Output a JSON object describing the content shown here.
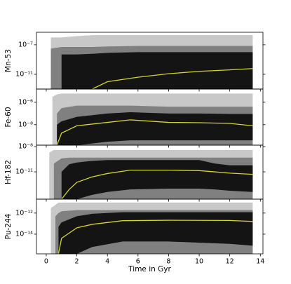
{
  "chart_data": [
    {
      "type": "band",
      "ylabel": "Mn-53",
      "log_y": true,
      "xlim": [
        -0.64,
        14.17
      ],
      "ylim": [
        1e-13,
        5e-06
      ],
      "yticks": [
        {
          "value": 1e-07,
          "label": "10⁻⁷"
        },
        {
          "value": 1e-11,
          "label": "10⁻¹¹"
        }
      ],
      "x": [
        0.3,
        1,
        2,
        3,
        4,
        6,
        8,
        10,
        12,
        13.5
      ],
      "series": [
        {
          "color": "#c8c8c8",
          "upper": [
            1e-06,
            1e-06,
            1.5e-06,
            2e-06,
            2e-06,
            2e-06,
            2e-06,
            2e-06,
            2e-06,
            2e-06
          ],
          "lower": [
            1e-13,
            1e-13,
            1e-13,
            1e-13,
            1e-13,
            1e-13,
            1e-13,
            1e-13,
            1e-13,
            1e-13
          ]
        },
        {
          "color": "#808080",
          "upper": [
            3e-08,
            5e-08,
            5e-08,
            5e-08,
            6e-08,
            7e-08,
            7e-08,
            7e-08,
            7e-08,
            7e-08
          ],
          "lower": [
            1e-13,
            1e-13,
            1e-13,
            1e-13,
            1e-13,
            1e-13,
            1e-13,
            1e-13,
            1e-13,
            1e-13
          ]
        },
        {
          "color": "#141414",
          "upper": [
            null,
            5e-09,
            5e-09,
            6e-09,
            8e-09,
            1e-08,
            1e-08,
            1e-08,
            1e-08,
            1e-08
          ],
          "lower": [
            null,
            1e-13,
            1e-13,
            1e-13,
            1e-13,
            1e-13,
            1e-13,
            1e-13,
            1e-13,
            1e-13
          ]
        },
        {
          "color": "#d4d42a",
          "values": [
            null,
            null,
            null,
            1e-13,
            1e-12,
            4e-12,
            1.2e-11,
            2.5e-11,
            4e-11,
            6e-11
          ]
        }
      ]
    },
    {
      "type": "band",
      "ylabel": "Fe-60",
      "log_y": true,
      "xlim": [
        -0.64,
        14.17
      ],
      "ylim": [
        1.5e-10,
        1.5e-05
      ],
      "yticks": [
        {
          "value": 1e-06,
          "label": "10⁻⁶"
        },
        {
          "value": 1e-08,
          "label": "10⁻⁸"
        }
      ],
      "x": [
        0.4,
        0.7,
        1,
        2,
        4,
        5.5,
        8,
        10,
        12,
        13.5
      ],
      "series": [
        {
          "color": "#c8c8c8",
          "upper": [
            3e-06,
            5e-06,
            6e-06,
            6e-06,
            6e-06,
            6e-06,
            6e-06,
            6e-06,
            6e-06,
            6e-06
          ],
          "lower": [
            1.5e-10,
            1.5e-10,
            1.5e-10,
            1.5e-10,
            1.5e-10,
            1.5e-10,
            1.5e-10,
            1.5e-10,
            1.5e-10,
            1.5e-10
          ]
        },
        {
          "color": "#808080",
          "upper": [
            null,
            1e-07,
            3e-07,
            5e-07,
            5e-07,
            5e-07,
            4e-07,
            4e-07,
            4e-07,
            4e-07
          ],
          "lower": [
            null,
            1.5e-10,
            1.5e-10,
            1.5e-10,
            1.5e-10,
            1.5e-10,
            1.5e-10,
            1.5e-10,
            1.5e-10,
            1.5e-10
          ]
        },
        {
          "color": "#141414",
          "upper": [
            null,
            1e-08,
            2e-08,
            5e-08,
            1e-07,
            1.3e-07,
            1e-07,
            1e-07,
            9e-08,
            9e-08
          ],
          "lower": [
            null,
            1.5e-10,
            1.5e-10,
            1.5e-10,
            3e-10,
            4e-10,
            4e-10,
            4e-10,
            4e-10,
            4e-10
          ]
        },
        {
          "color": "#d4d42a",
          "values": [
            null,
            1.5e-10,
            1.8e-09,
            8e-09,
            1.6e-08,
            2.7e-08,
            1.6e-08,
            1.5e-08,
            1.3e-08,
            8e-09
          ]
        }
      ]
    },
    {
      "type": "band",
      "ylabel": "Hf-182",
      "log_y": true,
      "xlim": [
        -0.64,
        14.17
      ],
      "ylim": [
        5.6e-15,
        1.5e-08
      ],
      "yticks": [
        {
          "value": 1e-08,
          "label": "10⁻⁸"
        },
        {
          "value": 1e-11,
          "label": "10⁻¹¹"
        }
      ],
      "x": [
        0.2,
        0.5,
        1,
        1.5,
        2,
        3,
        4,
        5.5,
        8,
        10,
        11,
        12,
        13.5
      ],
      "series": [
        {
          "color": "#c8c8c8",
          "upper": [
            2e-09,
            4e-09,
            4e-09,
            4e-09,
            4e-09,
            4e-09,
            4e-09,
            4e-09,
            4e-09,
            4e-09,
            4e-09,
            4e-09,
            4e-09
          ],
          "lower": [
            5.6e-15,
            5.6e-15,
            5.6e-15,
            5.6e-15,
            5.6e-15,
            5.6e-15,
            5.6e-15,
            5.6e-15,
            5.6e-15,
            5.6e-15,
            5.6e-15,
            5.6e-15,
            5.6e-15
          ]
        },
        {
          "color": "#808080",
          "upper": [
            null,
            1e-10,
            4e-10,
            5e-10,
            5e-10,
            5e-10,
            5e-10,
            5e-10,
            5e-10,
            5e-10,
            5e-10,
            5e-10,
            5e-10
          ],
          "lower": [
            null,
            5.6e-15,
            5.6e-15,
            5.6e-15,
            5.6e-15,
            5.6e-15,
            5.6e-15,
            5.6e-15,
            5.6e-15,
            5.6e-15,
            5.6e-15,
            5.6e-15,
            5.6e-15
          ]
        },
        {
          "color": "#141414",
          "upper": [
            null,
            null,
            1e-11,
            8e-11,
            1.3e-10,
            2e-10,
            2.5e-10,
            2.5e-10,
            2.5e-10,
            2.5e-10,
            1e-10,
            6e-11,
            6e-11
          ],
          "lower": [
            null,
            null,
            5.6e-15,
            5.6e-15,
            5.6e-15,
            1.8e-14,
            4e-14,
            8e-14,
            1e-13,
            1e-13,
            8e-14,
            5.6e-14,
            4e-14
          ]
        },
        {
          "color": "#d4d42a",
          "values": [
            null,
            null,
            5.6e-15,
            8e-14,
            5.6e-13,
            2.5e-12,
            6.3e-12,
            1.6e-11,
            1.6e-11,
            1.4e-11,
            1e-11,
            7e-12,
            5e-12
          ]
        }
      ]
    },
    {
      "type": "band",
      "ylabel": "Pu-244",
      "log_y": true,
      "xlim": [
        -0.64,
        14.17
      ],
      "ylim": [
        1.35e-16,
        2.1e-11
      ],
      "yticks": [
        {
          "value": 1e-12,
          "label": "10⁻¹²"
        },
        {
          "value": 1e-14,
          "label": "10⁻¹⁴"
        }
      ],
      "xlabel": "Time in Gyr",
      "xticks": [
        0,
        2,
        4,
        6,
        8,
        10,
        12,
        14
      ],
      "x": [
        0.3,
        0.6,
        0.8,
        1,
        2,
        3,
        5,
        8,
        12,
        13.5
      ],
      "series": [
        {
          "color": "#c8c8c8",
          "upper": [
            3e-12,
            6e-12,
            1e-11,
            1e-11,
            1e-11,
            1e-11,
            1e-11,
            1e-11,
            1e-11,
            1e-11
          ],
          "lower": [
            1.35e-16,
            1.35e-16,
            1.35e-16,
            1.35e-16,
            1.35e-16,
            1.35e-16,
            1.35e-16,
            1.35e-16,
            1.35e-16,
            1.35e-16
          ]
        },
        {
          "color": "#808080",
          "upper": [
            null,
            5e-13,
            1e-12,
            1.5e-12,
            1.9e-12,
            1.9e-12,
            1.9e-12,
            1.9e-12,
            1.9e-12,
            1.9e-12
          ],
          "lower": [
            null,
            1.35e-16,
            1.35e-16,
            1.35e-16,
            1.35e-16,
            1.35e-16,
            1.35e-16,
            1.35e-16,
            1.35e-16,
            1.35e-16
          ]
        },
        {
          "color": "#141414",
          "upper": [
            null,
            null,
            5e-14,
            1.3e-13,
            5e-13,
            8.5e-13,
            1.2e-12,
            1.2e-12,
            1.2e-12,
            1.2e-12
          ],
          "lower": [
            null,
            null,
            1.35e-16,
            1.35e-16,
            1.35e-16,
            6e-16,
            2e-15,
            2e-15,
            1.2e-15,
            8e-16
          ]
        },
        {
          "color": "#d4d42a",
          "values": [
            null,
            null,
            1.35e-16,
            4e-15,
            4e-14,
            8.5e-14,
            1.9e-13,
            2.1e-13,
            2e-13,
            1.6e-13
          ]
        }
      ]
    }
  ]
}
